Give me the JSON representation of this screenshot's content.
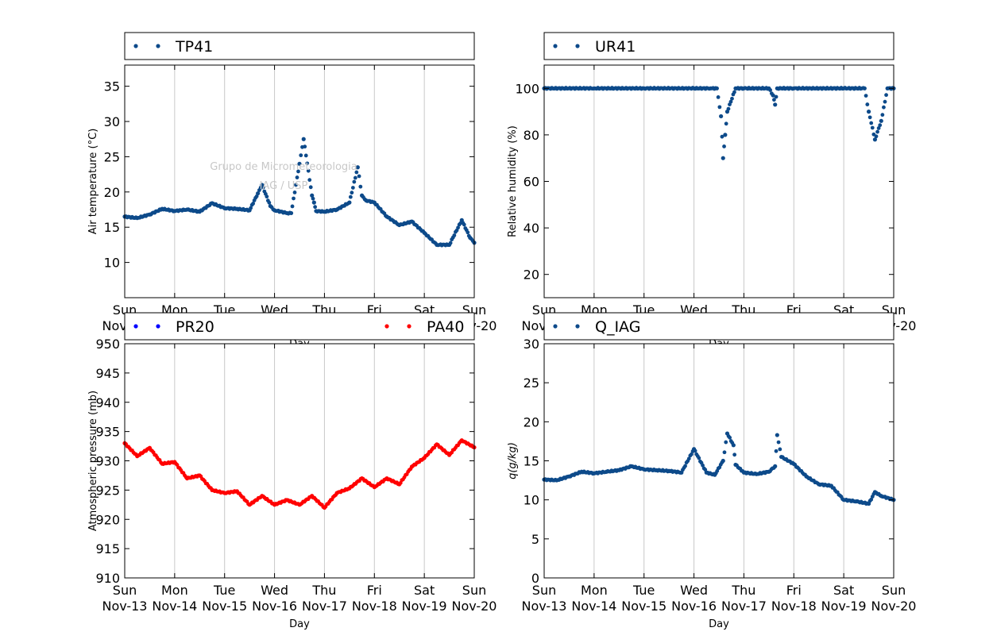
{
  "x_tick_days": [
    "Sun",
    "Mon",
    "Tue",
    "Wed",
    "Thu",
    "Fri",
    "Sat",
    "Sun"
  ],
  "x_tick_dates": [
    "Nov-13",
    "Nov-14",
    "Nov-15",
    "Nov-16",
    "Nov-17",
    "Nov-18",
    "Nov-19",
    "Nov-20"
  ],
  "x_label": "Day",
  "watermark": [
    "Grupo de Micrometeorologia",
    "IAG / USP"
  ],
  "colors": {
    "blue_series": "#0d4a8a",
    "red_series": "#ff0000",
    "pr_series": "#0000ff",
    "grid": "#c8c8c8",
    "watermark": "#c8c8c8"
  },
  "chart_data": [
    {
      "type": "scatter",
      "legend": [
        "TP41"
      ],
      "ylabel": "Air temperature (°C)",
      "ylim": [
        5,
        38
      ],
      "yticks": [
        10,
        15,
        20,
        25,
        30,
        35
      ],
      "xlim": [
        "2016-11-13",
        "2016-11-20"
      ],
      "grid": "vertical",
      "series": [
        {
          "name": "TP41",
          "x": [
            "2016-11-13 00:00",
            "2016-11-13 06:00",
            "2016-11-13 12:00",
            "2016-11-13 18:00",
            "2016-11-14 00:00",
            "2016-11-14 06:00",
            "2016-11-14 12:00",
            "2016-11-14 18:00",
            "2016-11-15 00:00",
            "2016-11-15 06:00",
            "2016-11-15 12:00",
            "2016-11-15 16:00",
            "2016-11-15 18:00",
            "2016-11-15 22:00",
            "2016-11-16 00:00",
            "2016-11-16 06:00",
            "2016-11-16 08:00",
            "2016-11-16 12:00",
            "2016-11-16 14:00",
            "2016-11-16 18:00",
            "2016-11-16 19:00",
            "2016-11-16 20:00",
            "2016-11-17 00:00",
            "2016-11-17 06:00",
            "2016-11-17 12:00",
            "2016-11-17 16:00",
            "2016-11-17 18:00",
            "2016-11-17 20:00",
            "2016-11-18 00:00",
            "2016-11-18 06:00",
            "2016-11-18 12:00",
            "2016-11-18 18:00",
            "2016-11-19 00:00",
            "2016-11-19 06:00",
            "2016-11-19 12:00",
            "2016-11-19 18:00",
            "2016-11-19 22:00",
            "2016-11-20 00:00"
          ],
          "y": [
            16.5,
            16.3,
            16.8,
            17.6,
            17.3,
            17.5,
            17.2,
            18.4,
            17.7,
            17.6,
            17.4,
            19.8,
            21.0,
            18.0,
            17.4,
            17.0,
            17.0,
            24.0,
            27.5,
            19.5,
            18.5,
            17.3,
            17.2,
            17.5,
            18.5,
            23.5,
            19.5,
            18.8,
            18.5,
            16.5,
            15.3,
            15.8,
            14.2,
            12.5,
            12.5,
            16.0,
            13.5,
            12.8
          ]
        }
      ]
    },
    {
      "type": "scatter",
      "legend": [
        "UR41"
      ],
      "ylabel": "Relative humidity (%)",
      "ylim": [
        10,
        110
      ],
      "yticks": [
        20,
        40,
        60,
        80,
        100
      ],
      "xlim": [
        "2016-11-13",
        "2016-11-20"
      ],
      "grid": "vertical",
      "series": [
        {
          "name": "UR41",
          "x": [
            "2016-11-13 00:00",
            "2016-11-14 00:00",
            "2016-11-15 00:00",
            "2016-11-16 00:00",
            "2016-11-16 08:00",
            "2016-11-16 11:00",
            "2016-11-16 13:00",
            "2016-11-16 14:00",
            "2016-11-16 15:00",
            "2016-11-16 16:00",
            "2016-11-16 20:00",
            "2016-11-17 00:00",
            "2016-11-17 12:00",
            "2016-11-17 14:00",
            "2016-11-17 15:00",
            "2016-11-17 16:00",
            "2016-11-17 18:00",
            "2016-11-18 00:00",
            "2016-11-19 00:00",
            "2016-11-19 10:00",
            "2016-11-19 12:00",
            "2016-11-19 15:00",
            "2016-11-19 18:00",
            "2016-11-19 21:00",
            "2016-11-20 00:00"
          ],
          "y": [
            100,
            100,
            100,
            100,
            100,
            100,
            88,
            70,
            80,
            90,
            100,
            100,
            100,
            97,
            93,
            100,
            100,
            100,
            100,
            100,
            90,
            78,
            86,
            100,
            100
          ]
        }
      ]
    },
    {
      "type": "scatter",
      "legend": [
        "PR20",
        "PA40"
      ],
      "ylabel": "Atmospheric pressure (mb)",
      "ylim": [
        910,
        950
      ],
      "yticks": [
        910,
        915,
        920,
        925,
        930,
        935,
        940,
        945,
        950
      ],
      "xlim": [
        "2016-11-13",
        "2016-11-20"
      ],
      "grid": "vertical",
      "series": [
        {
          "name": "PR20",
          "x": [],
          "y": []
        },
        {
          "name": "PA40",
          "x": [
            "2016-11-13 00:00",
            "2016-11-13 06:00",
            "2016-11-13 12:00",
            "2016-11-13 18:00",
            "2016-11-14 00:00",
            "2016-11-14 06:00",
            "2016-11-14 12:00",
            "2016-11-14 18:00",
            "2016-11-15 00:00",
            "2016-11-15 06:00",
            "2016-11-15 12:00",
            "2016-11-15 18:00",
            "2016-11-16 00:00",
            "2016-11-16 06:00",
            "2016-11-16 12:00",
            "2016-11-16 18:00",
            "2016-11-17 00:00",
            "2016-11-17 06:00",
            "2016-11-17 12:00",
            "2016-11-17 18:00",
            "2016-11-18 00:00",
            "2016-11-18 06:00",
            "2016-11-18 12:00",
            "2016-11-18 18:00",
            "2016-11-19 00:00",
            "2016-11-19 06:00",
            "2016-11-19 12:00",
            "2016-11-19 18:00",
            "2016-11-20 00:00"
          ],
          "y": [
            933,
            930.8,
            932.2,
            929.5,
            929.8,
            927,
            927.5,
            925,
            924.5,
            924.8,
            922.5,
            924,
            922.5,
            923.3,
            922.5,
            924,
            922,
            924.5,
            925.3,
            927,
            925.5,
            927,
            926,
            929,
            930.5,
            932.8,
            931,
            933.5,
            932.3
          ]
        }
      ]
    },
    {
      "type": "scatter",
      "legend": [
        "Q_IAG"
      ],
      "ylabel": "q(g/kg)",
      "ylim": [
        0,
        30
      ],
      "yticks": [
        0,
        5,
        10,
        15,
        20,
        25,
        30
      ],
      "xlim": [
        "2016-11-13",
        "2016-11-20"
      ],
      "grid": "vertical",
      "series": [
        {
          "name": "Q_IAG",
          "x": [
            "2016-11-13 00:00",
            "2016-11-13 06:00",
            "2016-11-13 12:00",
            "2016-11-13 18:00",
            "2016-11-14 00:00",
            "2016-11-14 06:00",
            "2016-11-14 12:00",
            "2016-11-14 18:00",
            "2016-11-15 00:00",
            "2016-11-15 06:00",
            "2016-11-15 12:00",
            "2016-11-15 18:00",
            "2016-11-16 00:00",
            "2016-11-16 06:00",
            "2016-11-16 10:00",
            "2016-11-16 14:00",
            "2016-11-16 16:00",
            "2016-11-16 19:00",
            "2016-11-16 20:00",
            "2016-11-17 00:00",
            "2016-11-17 06:00",
            "2016-11-17 12:00",
            "2016-11-17 15:00",
            "2016-11-17 16:00",
            "2016-11-17 18:00",
            "2016-11-18 00:00",
            "2016-11-18 06:00",
            "2016-11-18 12:00",
            "2016-11-18 18:00",
            "2016-11-19 00:00",
            "2016-11-19 06:00",
            "2016-11-19 12:00",
            "2016-11-19 15:00",
            "2016-11-19 18:00",
            "2016-11-20 00:00"
          ],
          "y": [
            12.6,
            12.5,
            13,
            13.6,
            13.4,
            13.6,
            13.8,
            14.3,
            13.9,
            13.8,
            13.7,
            13.5,
            16.5,
            13.5,
            13.2,
            15,
            18.5,
            17,
            14.5,
            13.5,
            13.3,
            13.6,
            14.3,
            18.3,
            15.5,
            14.6,
            13,
            12,
            11.8,
            10,
            9.8,
            9.5,
            11,
            10.5,
            10
          ]
        }
      ]
    }
  ]
}
